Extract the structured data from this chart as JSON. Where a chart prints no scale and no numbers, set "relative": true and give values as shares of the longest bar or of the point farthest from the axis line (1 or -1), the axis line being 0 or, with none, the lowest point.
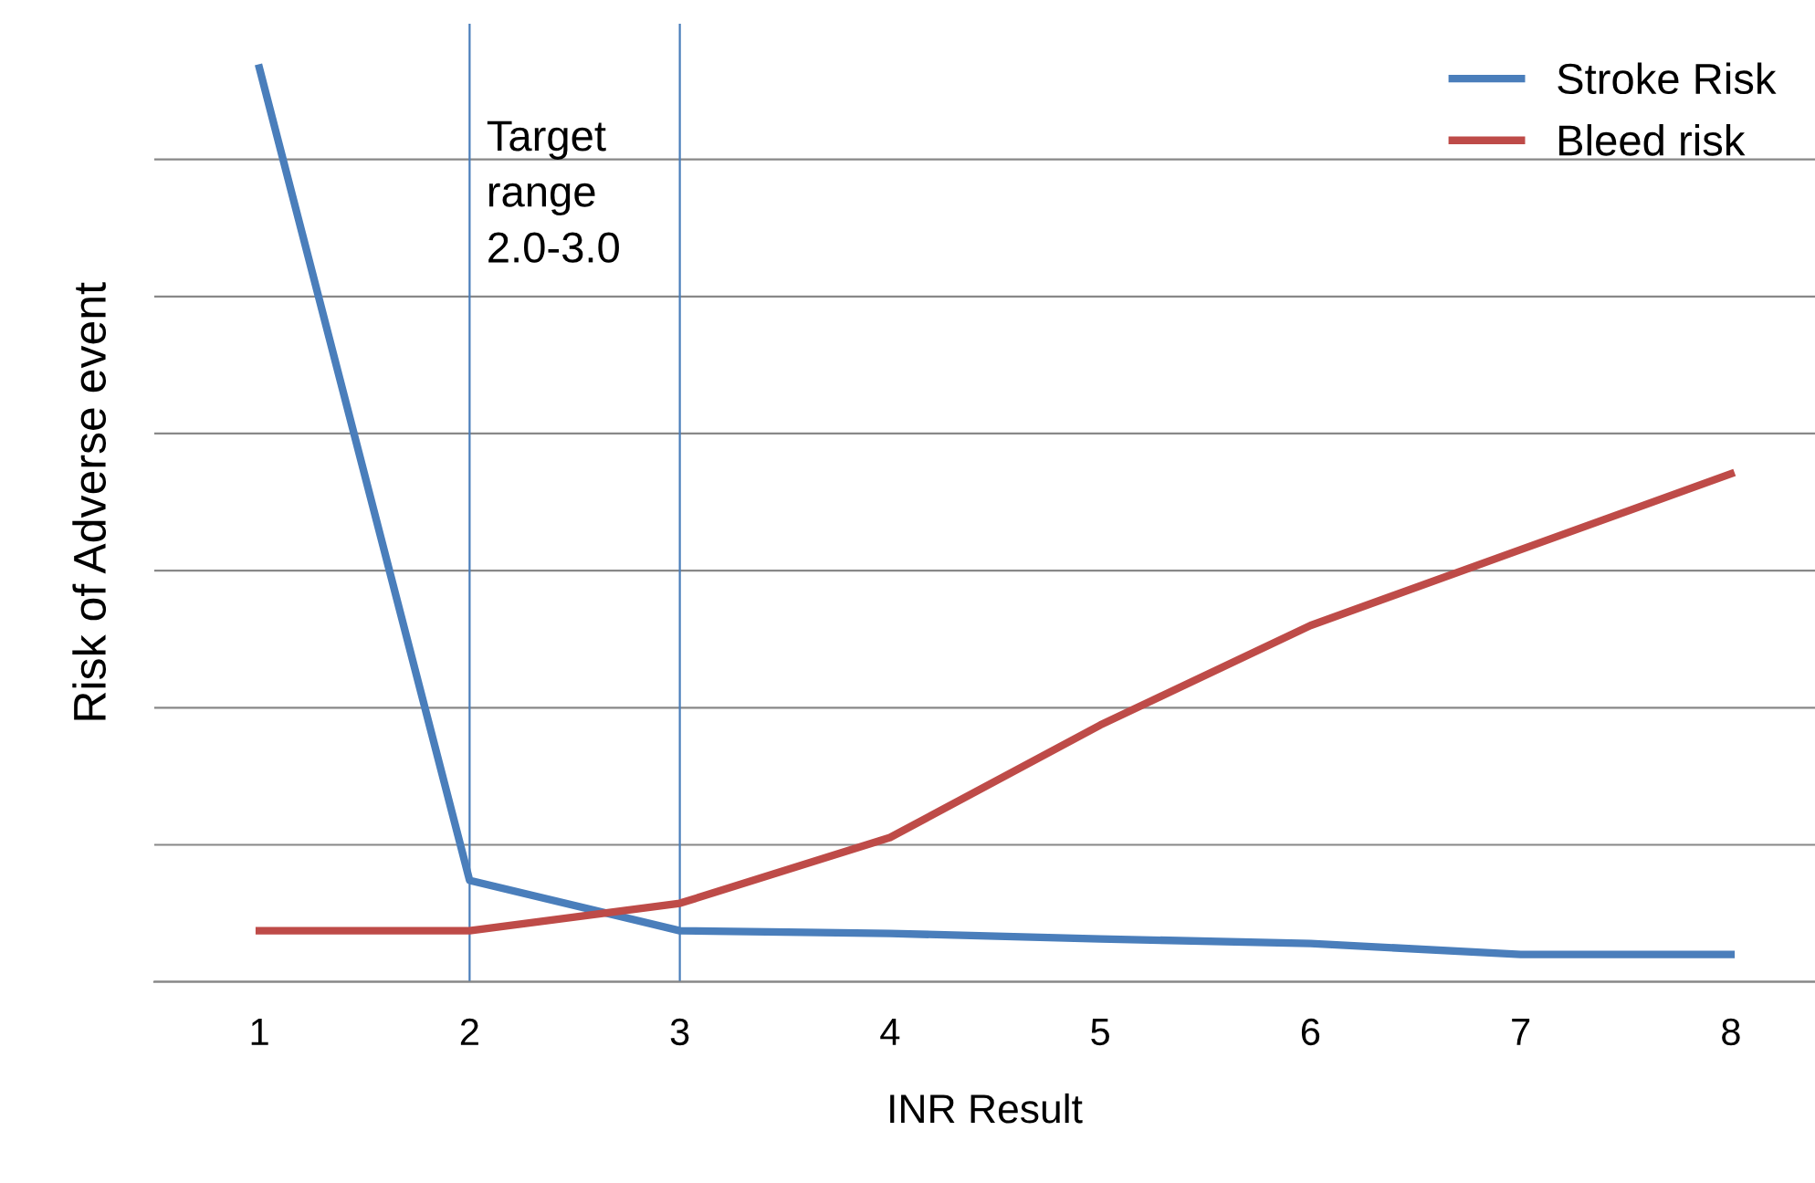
{
  "chart_data": {
    "type": "line",
    "xlabel": "INR Result",
    "ylabel": "Risk of Adverse event",
    "relative": true,
    "x": [
      1,
      2,
      3,
      4,
      5,
      6,
      7,
      8
    ],
    "xlim": [
      0.5,
      8.4
    ],
    "xticks": [
      1,
      2,
      3,
      4,
      5,
      6,
      7,
      8
    ],
    "series": [
      {
        "name": "Stroke Risk",
        "color": "#4a7ebb",
        "values": [
          1,
          0.111,
          0.056,
          0.053,
          0.047,
          0.042,
          0.03,
          0.03
        ]
      },
      {
        "name": "Bleed risk",
        "color": "#be4b48",
        "values": [
          0.056,
          0.056,
          0.086,
          0.158,
          0.281,
          0.39,
          0.473,
          0.556
        ]
      }
    ],
    "ref_lines": [
      {
        "axis": "x",
        "value": 2,
        "color": "#4a7ebb"
      },
      {
        "axis": "x",
        "value": 3,
        "color": "#4a7ebb"
      }
    ],
    "annotations": [
      "Target\nrange\n2.0-3.0"
    ],
    "grid": "y",
    "legend": "top right",
    "marker": "none",
    "line_style": "solid"
  }
}
